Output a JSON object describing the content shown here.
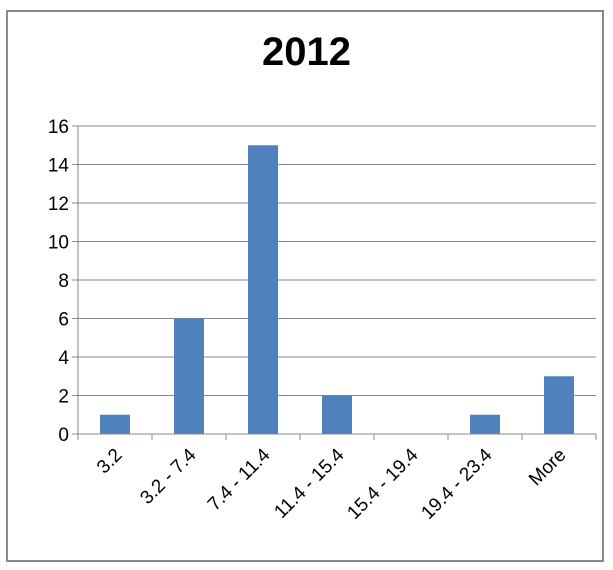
{
  "chart_data": {
    "type": "bar",
    "title": "2012",
    "categories": [
      "3.2",
      "3.2 - 7.4",
      "7.4 - 11.4",
      "11.4 - 15.4",
      "15.4 - 19.4",
      "19.4 - 23.4",
      "More"
    ],
    "values": [
      1,
      6,
      15,
      2,
      0,
      1,
      3
    ],
    "ylim": [
      0,
      16
    ],
    "yticks": [
      0,
      2,
      4,
      6,
      8,
      10,
      12,
      14,
      16
    ],
    "xlabel": "",
    "ylabel": "",
    "grid": true,
    "legend": "none",
    "bar_color": "#4f81bd"
  }
}
